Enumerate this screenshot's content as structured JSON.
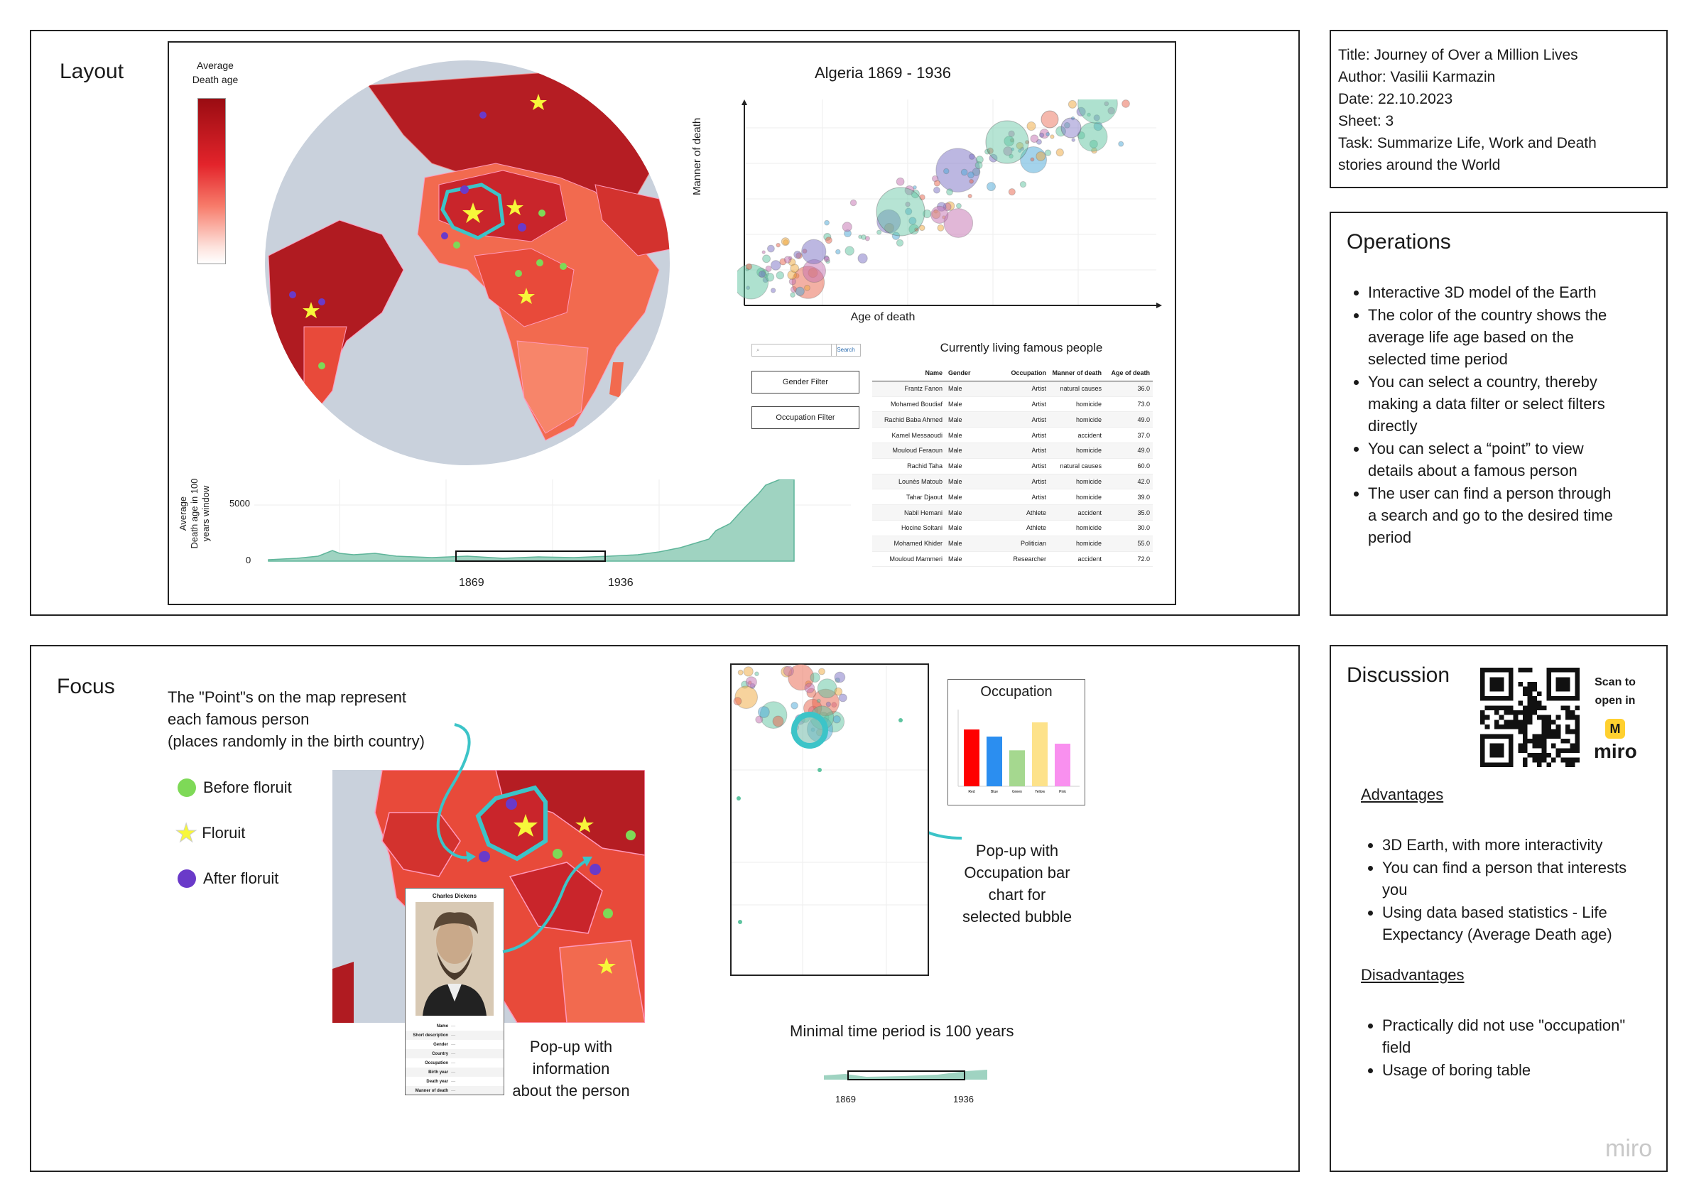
{
  "layout": {
    "title": "Layout",
    "map_legend_title_line1": "Average",
    "map_legend_title_line2": "Death age",
    "scatter_title": "Algeria 1869 - 1936",
    "scatter_xlabel": "Age of death",
    "scatter_ylabel": "Manner of death",
    "search_button": "Search",
    "gender_filter": "Gender Filter",
    "occupation_filter": "Occupation Filter",
    "table_title": "Currently living famous people",
    "table_headers": [
      "Name",
      "Gender",
      "Occupation",
      "Manner of death",
      "Age of death"
    ],
    "table_rows": [
      [
        "Frantz Fanon",
        "Male",
        "Artist",
        "natural causes",
        "36.0"
      ],
      [
        "Mohamed Boudiaf",
        "Male",
        "Artist",
        "homicide",
        "73.0"
      ],
      [
        "Rachid Baba Ahmed",
        "Male",
        "Artist",
        "homicide",
        "49.0"
      ],
      [
        "Kamel Messaoudi",
        "Male",
        "Artist",
        "accident",
        "37.0"
      ],
      [
        "Mouloud Feraoun",
        "Male",
        "Artist",
        "homicide",
        "49.0"
      ],
      [
        "Rachid Taha",
        "Male",
        "Artist",
        "natural causes",
        "60.0"
      ],
      [
        "Lounès Matoub",
        "Male",
        "Artist",
        "homicide",
        "42.0"
      ],
      [
        "Tahar Djaout",
        "Male",
        "Artist",
        "homicide",
        "39.0"
      ],
      [
        "Nabil Hemani",
        "Male",
        "Athlete",
        "accident",
        "35.0"
      ],
      [
        "Hocine Soltani",
        "Male",
        "Athlete",
        "homicide",
        "30.0"
      ],
      [
        "Mohamed Khider",
        "Male",
        "Politician",
        "homicide",
        "55.0"
      ],
      [
        "Mouloud Mammeri",
        "Male",
        "Researcher",
        "accident",
        "72.0"
      ]
    ],
    "timeline_ylabel_line1": "Average",
    "timeline_ylabel_line2": "Death age in 100",
    "timeline_ylabel_line3": "years window",
    "timeline_tick_high": "5000",
    "timeline_tick_low": "0",
    "timeline_start": "1869",
    "timeline_end": "1936"
  },
  "info": {
    "title": "Title: Journey of Over a Million Lives",
    "author": "Author: Vasilii Karmazin",
    "date": "Date: 22.10.2023",
    "sheet": "Sheet: 3",
    "task_line1": "Task: Summarize Life, Work and Death",
    "task_line2": "stories around the World"
  },
  "operations": {
    "title": "Operations",
    "items": [
      "Interactive 3D model of the Earth",
      "The color of the country shows the average life age based on the selected time period",
      "You can select a country, thereby making a data filter or select filters directly",
      "You can select a “point” to view details about a famous person",
      "The user can find a person through a search and go to the desired time period"
    ]
  },
  "focus": {
    "title": "Focus",
    "points_line1": "The \"Point\"s on the map represent",
    "points_line2": "each famous person",
    "points_line3": "(places randomly in the birth country)",
    "legend_before": "Before floruit",
    "legend_floruit": "Floruit",
    "legend_after": "After floruit",
    "popup_person_name": "Charles Dickens",
    "popup_line1": "Pop-up with",
    "popup_line2": "information",
    "popup_line3": "about the person",
    "occupation_title": "Occupation",
    "occupation_popup_line1": "Pop-up with",
    "occupation_popup_line2": "Occupation bar",
    "occupation_popup_line3": "chart for",
    "occupation_popup_line4": "selected bubble",
    "minimal_period": "Minimal time period is 100 years",
    "mini_start": "1869",
    "mini_end": "1936"
  },
  "discussion": {
    "title": "Discussion",
    "scan_line1": "Scan to",
    "scan_line2": "open in",
    "miro_label": "miro",
    "advantages_title": "Advantages",
    "advantages": [
      "3D Earth, with more interactivity",
      "You can find a person that interests you",
      "Using data based statistics - Life Expectancy (Average Death age)"
    ],
    "disadvantages_title": "Disadvantages",
    "disadvantages": [
      "Practically did not use \"occupation\" field",
      "Usage of boring table"
    ]
  },
  "watermark": "miro",
  "colors": {
    "map_dark": "#a50f15",
    "map_mid": "#ef3b2c",
    "map_light": "#fcbba1",
    "ocean": "#c9d1dc",
    "teal": "#3cc4c8",
    "before": "#7ed957",
    "floruit": "#f7f73a",
    "after": "#6a3ac9"
  },
  "chart_data": {
    "type": "bar",
    "title": "Occupation",
    "categories": [
      "Red",
      "Blue",
      "Green",
      "Yellow",
      "Pink"
    ],
    "values": [
      12,
      10.5,
      7.6,
      13.5,
      9
    ],
    "colors": [
      "#ff0000",
      "#2b8ef0",
      "#a5d88f",
      "#fde28a",
      "#f990ef"
    ]
  }
}
